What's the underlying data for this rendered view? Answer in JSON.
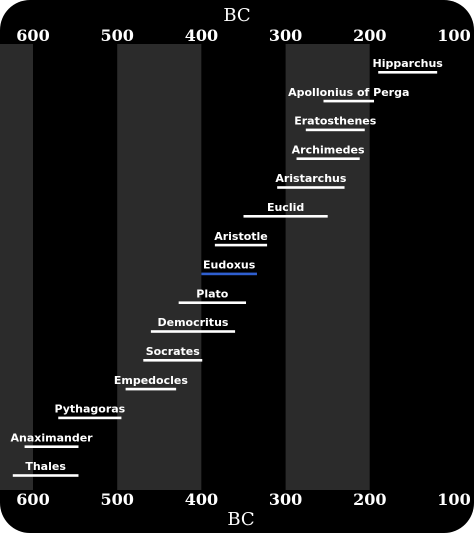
{
  "timeline": {
    "era_label_top": "BC",
    "era_label_bottom": "BC",
    "axis": {
      "min_year": 640,
      "max_year": 100,
      "direction": "reversed"
    },
    "ticks": [
      {
        "year": 600,
        "label": "600"
      },
      {
        "year": 500,
        "label": "500"
      },
      {
        "year": 400,
        "label": "400"
      },
      {
        "year": 300,
        "label": "300"
      },
      {
        "year": 200,
        "label": "200"
      },
      {
        "year": 100,
        "label": "100"
      }
    ],
    "century_bands": [
      {
        "from": 600,
        "to": 640,
        "shade": "light"
      },
      {
        "from": 500,
        "to": 600,
        "shade": "dark"
      },
      {
        "from": 400,
        "to": 500,
        "shade": "light"
      },
      {
        "from": 300,
        "to": 400,
        "shade": "dark"
      },
      {
        "from": 200,
        "to": 300,
        "shade": "light"
      },
      {
        "from": 100,
        "to": 200,
        "shade": "dark"
      }
    ],
    "people": [
      {
        "name": "Hipparchus",
        "born": 190,
        "died": 120,
        "highlight": false
      },
      {
        "name": "Apollonius of Perga",
        "born": 255,
        "died": 195,
        "highlight": false
      },
      {
        "name": "Eratosthenes",
        "born": 276,
        "died": 206,
        "highlight": false
      },
      {
        "name": "Archimedes",
        "born": 287,
        "died": 212,
        "highlight": false
      },
      {
        "name": "Aristarchus",
        "born": 310,
        "died": 230,
        "highlight": false
      },
      {
        "name": "Euclid",
        "born": 350,
        "died": 250,
        "highlight": false
      },
      {
        "name": "Aristotle",
        "born": 384,
        "died": 322,
        "highlight": false
      },
      {
        "name": "Eudoxus",
        "born": 400,
        "died": 334,
        "highlight": true
      },
      {
        "name": "Plato",
        "born": 427,
        "died": 347,
        "highlight": false
      },
      {
        "name": "Democritus",
        "born": 460,
        "died": 360,
        "highlight": false
      },
      {
        "name": "Socrates",
        "born": 469,
        "died": 399,
        "highlight": false
      },
      {
        "name": "Empedocles",
        "born": 490,
        "died": 430,
        "highlight": false
      },
      {
        "name": "Pythagoras",
        "born": 570,
        "died": 495,
        "highlight": false
      },
      {
        "name": "Anaximander",
        "born": 610,
        "died": 546,
        "highlight": false
      },
      {
        "name": "Thales",
        "born": 624,
        "died": 546,
        "highlight": false
      }
    ]
  },
  "colors": {
    "background": "#000000",
    "band_light": "#2b2b2b",
    "band_dark": "#000000",
    "text": "#ffffff",
    "lifespan_line": "#ffffff",
    "highlight_line": "#2f5fd0"
  }
}
